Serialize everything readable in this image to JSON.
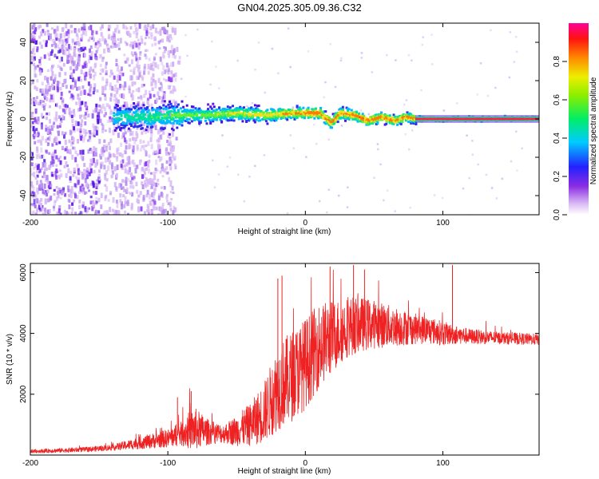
{
  "title": "GN04.2025.305.09.36.C32",
  "colors": {
    "trace": "#ee2222",
    "scatter_low": "#7733ee",
    "scatter_faint": "#c9a8f2",
    "ridge_core": "#ff2244",
    "ridge_mid": "#22ddaa",
    "ridge_band": "#4422ee"
  },
  "chart_data": [
    {
      "type": "heatmap",
      "name": "spectrogram",
      "xlabel": "Height of straight line (km)",
      "ylabel": "Frequency (Hz)",
      "xlim": [
        -200,
        170
      ],
      "ylim": [
        -50,
        50
      ],
      "xticks": [
        -200,
        -100,
        0,
        100
      ],
      "yticks": [
        -40,
        -20,
        0,
        20,
        40
      ],
      "ridge": {
        "x": [
          -130,
          -110,
          -90,
          -70,
          -50,
          -30,
          -10,
          0,
          10,
          18,
          25,
          35,
          45,
          55,
          65,
          72,
          80,
          90,
          110,
          130,
          150,
          165
        ],
        "y": [
          1,
          1,
          2,
          2,
          3,
          2,
          3,
          3,
          3,
          -2,
          3,
          2,
          -1,
          1,
          -1,
          1,
          0,
          0,
          0,
          0,
          0,
          0
        ]
      },
      "noise_region_km": [
        -200,
        -90
      ]
    },
    {
      "type": "colorbar",
      "name": "amplitude-colorbar",
      "label": "Normalized spectral amplitude",
      "range": [
        0.0,
        1.0
      ],
      "ticks": [
        "0.0",
        "0.2",
        "0.4",
        "0.6",
        "0.8"
      ],
      "tick_values": [
        0.0,
        0.2,
        0.4,
        0.6,
        0.8
      ]
    },
    {
      "type": "line",
      "name": "snr-trace",
      "xlabel": "Height of straight line (km)",
      "ylabel": "SNR (10 * v/v)",
      "xlim": [
        -200,
        170
      ],
      "ylim": [
        0,
        6300
      ],
      "xticks": [
        -200,
        -100,
        0,
        100
      ],
      "yticks": [
        2000,
        4000,
        6000
      ],
      "envelope": {
        "x": [
          -200,
          -160,
          -140,
          -120,
          -100,
          -90,
          -85,
          -80,
          -70,
          -60,
          -50,
          -40,
          -30,
          -25,
          -20,
          -10,
          0,
          10,
          20,
          30,
          40,
          50,
          60,
          70,
          80,
          90,
          100,
          110,
          120,
          140,
          170
        ],
        "mean": [
          120,
          180,
          250,
          400,
          550,
          700,
          800,
          850,
          750,
          700,
          800,
          1000,
          1400,
          1800,
          2200,
          2600,
          3000,
          3600,
          3900,
          4200,
          4300,
          4300,
          4250,
          4200,
          4150,
          4100,
          4000,
          3950,
          3900,
          3850,
          3800
        ],
        "spread": [
          60,
          80,
          100,
          200,
          300,
          400,
          600,
          700,
          400,
          300,
          500,
          700,
          1000,
          1200,
          1400,
          1500,
          1500,
          1400,
          1200,
          1000,
          900,
          800,
          700,
          600,
          500,
          450,
          400,
          300,
          250,
          200,
          180
        ]
      },
      "spikes": [
        {
          "x": -93,
          "y": 1900
        },
        {
          "x": -83,
          "y": 2100
        },
        {
          "x": -20,
          "y": 5800
        },
        {
          "x": -17,
          "y": 5900
        },
        {
          "x": 18,
          "y": 6200
        },
        {
          "x": 35,
          "y": 6250
        },
        {
          "x": 43,
          "y": 6100
        },
        {
          "x": 107,
          "y": 6250
        }
      ]
    }
  ]
}
